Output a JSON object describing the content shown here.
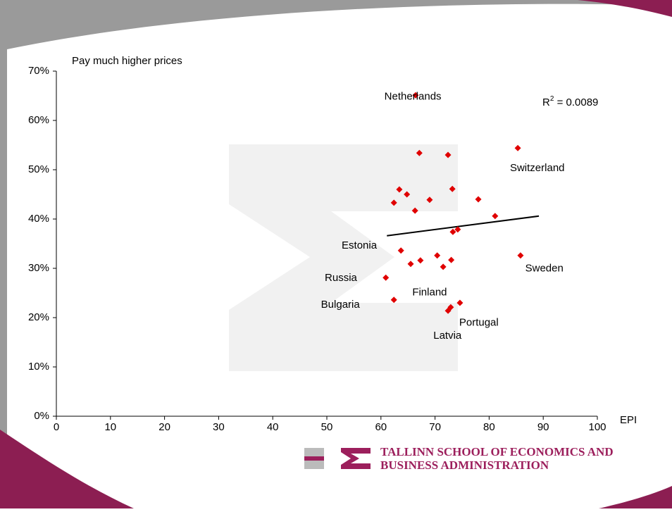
{
  "chart_data": {
    "type": "scatter",
    "ylabel": "Pay much higher prices",
    "xlabel": "EPI",
    "color": "#e00000",
    "xlim": [
      0,
      100
    ],
    "xticks": [
      0,
      10,
      20,
      30,
      40,
      50,
      60,
      70,
      80,
      90,
      100
    ],
    "ylim": [
      0,
      70
    ],
    "yticks": [
      {
        "value": 0,
        "label": "0%"
      },
      {
        "value": 10,
        "label": "10%"
      },
      {
        "value": 20,
        "label": "20%"
      },
      {
        "value": 30,
        "label": "30%"
      },
      {
        "value": 40,
        "label": "40%"
      },
      {
        "value": 50,
        "label": "50%"
      },
      {
        "value": 60,
        "label": "60%"
      },
      {
        "value": 70,
        "label": "70%"
      }
    ],
    "x": [
      66.4,
      67.1,
      72.4,
      85.3,
      73.2,
      78.0,
      69.0,
      63.4,
      64.8,
      62.4,
      66.3,
      81.1,
      73.3,
      74.2,
      63.7,
      70.4,
      67.3,
      65.5,
      71.5,
      73.0,
      85.8,
      60.9,
      62.4,
      74.6,
      72.9,
      72.4
    ],
    "values": [
      65.1,
      53.4,
      53.0,
      54.4,
      46.1,
      44.0,
      43.9,
      46.0,
      45.0,
      43.3,
      41.7,
      40.6,
      37.4,
      37.9,
      33.6,
      32.6,
      31.6,
      30.9,
      30.3,
      31.7,
      32.6,
      28.1,
      23.6,
      23.0,
      22.1,
      21.4
    ],
    "trendline": {
      "x": [
        61.1,
        89.2
      ],
      "y": [
        36.6,
        40.6
      ],
      "color": "#000000",
      "r2_label": [
        "R",
        "2",
        " = 0.0089"
      ]
    },
    "annotations": [
      {
        "text": "Netherlands",
        "x": 65.9,
        "y": 64.8
      },
      {
        "text": "Switzerland",
        "x": 88.9,
        "y": 50.3
      },
      {
        "text": "Estonia",
        "x": 56.0,
        "y": 34.6
      },
      {
        "text": "Sweden",
        "x": 90.2,
        "y": 29.9
      },
      {
        "text": "Russia",
        "x": 52.6,
        "y": 28.0
      },
      {
        "text": "Finland",
        "x": 69.0,
        "y": 25.1
      },
      {
        "text": "Bulgaria",
        "x": 52.5,
        "y": 22.6
      },
      {
        "text": "Portugal",
        "x": 78.1,
        "y": 18.9
      },
      {
        "text": "Latvia",
        "x": 72.3,
        "y": 16.3
      }
    ]
  },
  "footer": {
    "lines": [
      "TALLINN SCHOOL OF ECONOMICS AND",
      "BUSINESS ADMINISTRATION"
    ]
  }
}
